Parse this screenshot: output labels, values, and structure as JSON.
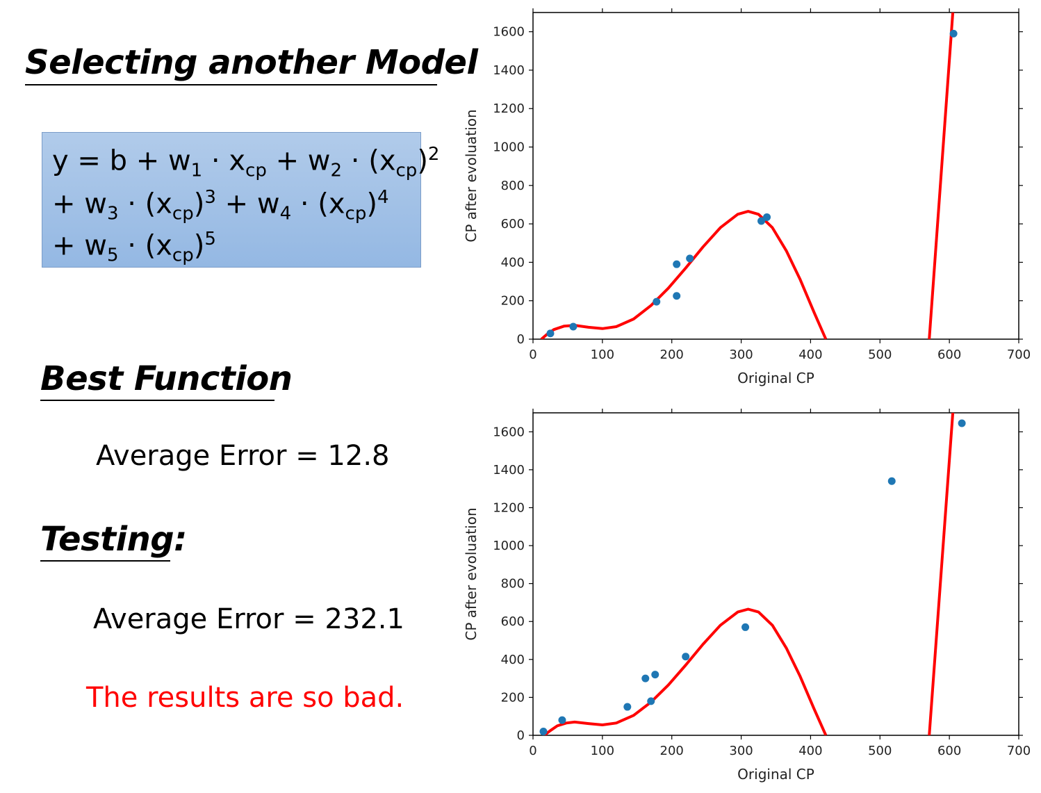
{
  "headings": {
    "title": "Selecting another Model",
    "best": "Best Function",
    "testing": "Testing:"
  },
  "formula": {
    "line1": [
      "y = b + w",
      "1",
      " · x",
      "cp",
      " + w",
      "2",
      " · (x",
      "cp",
      ")",
      "2"
    ],
    "line2": [
      "+ w",
      "3",
      " · (x",
      "cp",
      ")",
      "3",
      " + w",
      "4",
      " · (x",
      "cp",
      ")",
      "4"
    ],
    "line3": [
      "+ w",
      "5",
      " · (x",
      "cp",
      ")",
      "5"
    ]
  },
  "results": {
    "train_error": "Average Error = 12.8",
    "test_error": "Average Error = 232.1",
    "verdict": "The results are so bad."
  },
  "colors": {
    "curve": "#ff0000",
    "points": "#1f77b4",
    "verdict": "#ff0000"
  },
  "chart_data": [
    {
      "type": "scatter",
      "title": "",
      "xlabel": "Original CP",
      "ylabel": "CP after evoluation",
      "xlim": [
        0,
        700
      ],
      "ylim": [
        0,
        1700
      ],
      "xticks": [
        0,
        100,
        200,
        300,
        400,
        500,
        600,
        700
      ],
      "yticks": [
        0,
        200,
        400,
        600,
        800,
        1000,
        1200,
        1400,
        1600
      ],
      "grid": false,
      "points": [
        {
          "x": 25,
          "y": 30
        },
        {
          "x": 58,
          "y": 65
        },
        {
          "x": 178,
          "y": 195
        },
        {
          "x": 207,
          "y": 225
        },
        {
          "x": 207,
          "y": 390
        },
        {
          "x": 226,
          "y": 420
        },
        {
          "x": 329,
          "y": 615
        },
        {
          "x": 337,
          "y": 635
        },
        {
          "x": 606,
          "y": 1590
        }
      ],
      "fit_curve": [
        {
          "x": 12,
          "y": 0
        },
        {
          "x": 20,
          "y": 25
        },
        {
          "x": 30,
          "y": 50
        },
        {
          "x": 45,
          "y": 68
        },
        {
          "x": 60,
          "y": 72
        },
        {
          "x": 80,
          "y": 62
        },
        {
          "x": 100,
          "y": 55
        },
        {
          "x": 120,
          "y": 65
        },
        {
          "x": 145,
          "y": 105
        },
        {
          "x": 170,
          "y": 175
        },
        {
          "x": 195,
          "y": 265
        },
        {
          "x": 220,
          "y": 370
        },
        {
          "x": 245,
          "y": 480
        },
        {
          "x": 270,
          "y": 580
        },
        {
          "x": 295,
          "y": 650
        },
        {
          "x": 310,
          "y": 665
        },
        {
          "x": 325,
          "y": 650
        },
        {
          "x": 345,
          "y": 580
        },
        {
          "x": 365,
          "y": 460
        },
        {
          "x": 385,
          "y": 310
        },
        {
          "x": 405,
          "y": 140
        },
        {
          "x": 422,
          "y": 0
        }
      ],
      "fit_curve_right": [
        {
          "x": 571,
          "y": 0
        },
        {
          "x": 605,
          "y": 1700
        }
      ]
    },
    {
      "type": "scatter",
      "title": "",
      "xlabel": "Original CP",
      "ylabel": "CP after evoluation",
      "xlim": [
        0,
        700
      ],
      "ylim": [
        0,
        1700
      ],
      "xticks": [
        0,
        100,
        200,
        300,
        400,
        500,
        600,
        700
      ],
      "yticks": [
        0,
        200,
        400,
        600,
        800,
        1000,
        1200,
        1400,
        1600
      ],
      "grid": false,
      "points": [
        {
          "x": 15,
          "y": 20
        },
        {
          "x": 42,
          "y": 80
        },
        {
          "x": 136,
          "y": 150
        },
        {
          "x": 162,
          "y": 300
        },
        {
          "x": 170,
          "y": 180
        },
        {
          "x": 176,
          "y": 320
        },
        {
          "x": 220,
          "y": 415
        },
        {
          "x": 306,
          "y": 570
        },
        {
          "x": 517,
          "y": 1340
        },
        {
          "x": 618,
          "y": 1645
        }
      ],
      "fit_curve": [
        {
          "x": 16,
          "y": 0
        },
        {
          "x": 25,
          "y": 25
        },
        {
          "x": 35,
          "y": 50
        },
        {
          "x": 48,
          "y": 65
        },
        {
          "x": 60,
          "y": 70
        },
        {
          "x": 80,
          "y": 62
        },
        {
          "x": 100,
          "y": 55
        },
        {
          "x": 120,
          "y": 65
        },
        {
          "x": 145,
          "y": 105
        },
        {
          "x": 170,
          "y": 175
        },
        {
          "x": 195,
          "y": 265
        },
        {
          "x": 220,
          "y": 370
        },
        {
          "x": 245,
          "y": 480
        },
        {
          "x": 270,
          "y": 580
        },
        {
          "x": 295,
          "y": 650
        },
        {
          "x": 310,
          "y": 665
        },
        {
          "x": 325,
          "y": 650
        },
        {
          "x": 345,
          "y": 580
        },
        {
          "x": 365,
          "y": 460
        },
        {
          "x": 385,
          "y": 310
        },
        {
          "x": 405,
          "y": 140
        },
        {
          "x": 422,
          "y": 0
        }
      ],
      "fit_curve_right": [
        {
          "x": 571,
          "y": 0
        },
        {
          "x": 605,
          "y": 1700
        }
      ]
    }
  ]
}
